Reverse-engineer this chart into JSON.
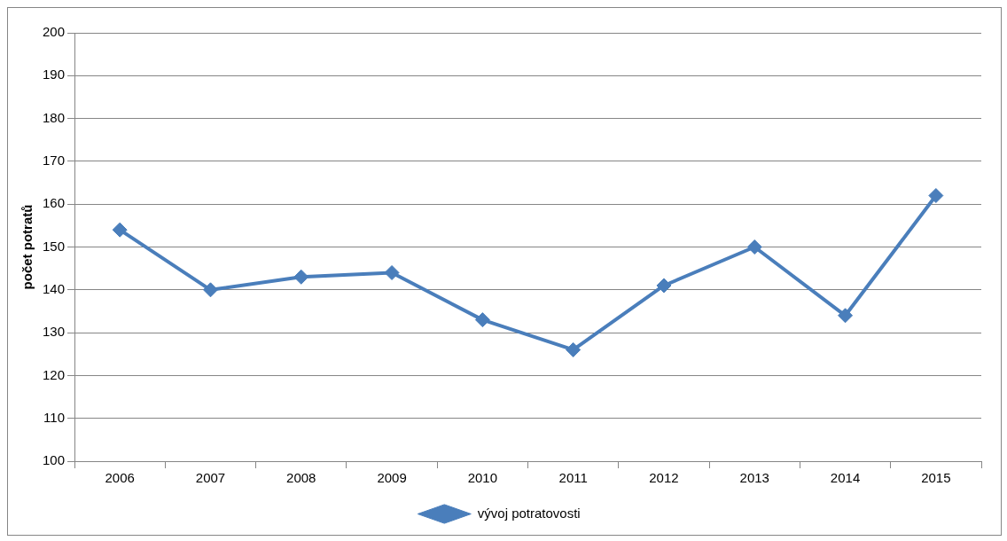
{
  "chart_data": {
    "type": "line",
    "ylabel": "počet potratů",
    "categories": [
      "2006",
      "2007",
      "2008",
      "2009",
      "2010",
      "2011",
      "2012",
      "2013",
      "2014",
      "2015"
    ],
    "series": [
      {
        "name": "vývoj potratovosti",
        "color": "#4a7ebb",
        "values": [
          154,
          140,
          143,
          144,
          133,
          126,
          141,
          150,
          134,
          162
        ]
      }
    ],
    "ylim": [
      100,
      200
    ],
    "yticks": [
      100,
      110,
      120,
      130,
      140,
      150,
      160,
      170,
      180,
      190,
      200
    ],
    "grid": "y",
    "legend": "bottom",
    "marker": "diamond",
    "line_style": "solid"
  }
}
